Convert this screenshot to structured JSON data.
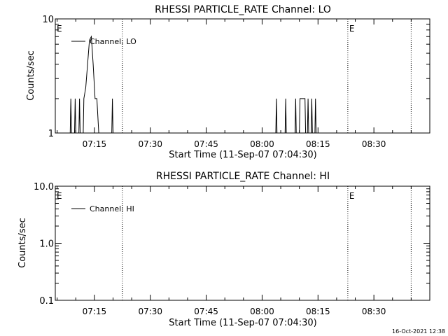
{
  "chart_data": [
    {
      "type": "line",
      "title": "RHESSI PARTICLE_RATE Channel: LO",
      "xlabel": "Start Time (11-Sep-07 07:04:30)",
      "ylabel": "Counts/sec",
      "yscale": "log",
      "xlim": [
        "07:04:30",
        "08:45:00"
      ],
      "ylim": [
        1,
        10
      ],
      "x_ticks": [
        "07:15",
        "07:30",
        "07:45",
        "08:00",
        "08:15",
        "08:30"
      ],
      "y_ticks": [
        "1",
        "10"
      ],
      "grid": false,
      "legend": {
        "position": "top-left",
        "label": "Channel: LO"
      },
      "markers": [
        {
          "label": "E",
          "time": "07:04:30"
        },
        {
          "label": "",
          "time": "07:22:30"
        },
        {
          "label": "E",
          "time": "08:23:00"
        },
        {
          "label": "",
          "time": "08:40:00"
        }
      ],
      "series": [
        {
          "name": "Channel: LO",
          "points": [
            [
              "07:08:30",
              1
            ],
            [
              "07:08:40",
              2
            ],
            [
              "07:08:50",
              1
            ],
            [
              "07:09:40",
              1
            ],
            [
              "07:09:50",
              2
            ],
            [
              "07:10:00",
              1
            ],
            [
              "07:10:50",
              1
            ],
            [
              "07:11:00",
              2
            ],
            [
              "07:11:10",
              1
            ],
            [
              "07:12:00",
              1
            ],
            [
              "07:12:10",
              2
            ],
            [
              "07:12:40",
              2.5
            ],
            [
              "07:13:10",
              4
            ],
            [
              "07:13:40",
              6.5
            ],
            [
              "07:14:10",
              7
            ],
            [
              "07:14:40",
              4
            ],
            [
              "07:15:10",
              2
            ],
            [
              "07:15:40",
              2
            ],
            [
              "07:16:10",
              1
            ],
            [
              "07:16:40",
              1
            ],
            [
              "07:19:40",
              1
            ],
            [
              "07:19:50",
              2
            ],
            [
              "07:20:00",
              1
            ],
            [
              "08:03:40",
              1
            ],
            [
              "08:03:50",
              2
            ],
            [
              "08:04:00",
              1
            ],
            [
              "08:06:10",
              1
            ],
            [
              "08:06:20",
              2
            ],
            [
              "08:06:30",
              1
            ],
            [
              "08:08:50",
              1
            ],
            [
              "08:09:00",
              2
            ],
            [
              "08:09:10",
              1
            ],
            [
              "08:10:00",
              1
            ],
            [
              "08:10:10",
              2
            ],
            [
              "08:11:30",
              2
            ],
            [
              "08:11:40",
              1
            ],
            [
              "08:12:10",
              1
            ],
            [
              "08:12:20",
              2
            ],
            [
              "08:12:30",
              1
            ],
            [
              "08:13:10",
              1
            ],
            [
              "08:13:20",
              2
            ],
            [
              "08:13:30",
              1
            ],
            [
              "08:14:10",
              1
            ],
            [
              "08:14:20",
              2
            ],
            [
              "08:14:30",
              1
            ]
          ]
        }
      ]
    },
    {
      "type": "line",
      "title": "RHESSI PARTICLE_RATE Channel: HI",
      "xlabel": "Start Time (11-Sep-07 07:04:30)",
      "ylabel": "Counts/sec",
      "yscale": "log",
      "xlim": [
        "07:04:30",
        "08:45:00"
      ],
      "ylim": [
        0.1,
        10
      ],
      "x_ticks": [
        "07:15",
        "07:30",
        "07:45",
        "08:00",
        "08:15",
        "08:30"
      ],
      "y_ticks": [
        "0.1",
        "1.0",
        "10.0"
      ],
      "grid": false,
      "legend": {
        "position": "top-left",
        "label": "Channel: HI"
      },
      "markers": [
        {
          "label": "E",
          "time": "07:04:30"
        },
        {
          "label": "",
          "time": "07:22:30"
        },
        {
          "label": "E",
          "time": "08:23:00"
        },
        {
          "label": "",
          "time": "08:40:00"
        }
      ],
      "series": [
        {
          "name": "Channel: HI",
          "points": []
        }
      ]
    }
  ],
  "footer": {
    "timestamp": "16-Oct-2021 12:38"
  }
}
